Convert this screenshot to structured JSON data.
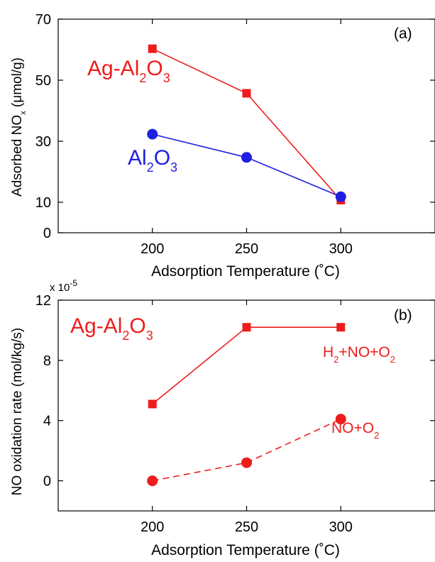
{
  "colors": {
    "red": "#ee1c1c",
    "blue": "#1f1fe0",
    "axis": "#000000"
  },
  "chart_data": [
    {
      "type": "line",
      "panel_label": "(a)",
      "xlabel": "Adsorption Temperature (˚C)",
      "ylabel": "Adsorbed NOₓ (μmol/g)",
      "xlim": [
        150,
        350
      ],
      "ylim": [
        0,
        70
      ],
      "xticks": [
        200,
        250,
        300
      ],
      "yticks": [
        0,
        10,
        30,
        50,
        70
      ],
      "grid": false,
      "series": [
        {
          "name": "Ag-Al₂O₃",
          "color": "#ee1c1c",
          "marker": "square",
          "line": "solid",
          "x": [
            200,
            250,
            300
          ],
          "y": [
            60.3,
            45.7,
            10.7
          ]
        },
        {
          "name": "Al₂O₃",
          "color": "#1f1fe0",
          "marker": "circle",
          "line": "solid",
          "x": [
            200,
            250,
            300
          ],
          "y": [
            32.3,
            24.7,
            11.8
          ]
        }
      ]
    },
    {
      "type": "line",
      "panel_label": "(b)",
      "title": "Ag-Al₂O₃",
      "xlabel": "Adsorption Temperature (˚C)",
      "ylabel": "NO oxidation rate (mol/kg/s)",
      "y_multiplier": "x 10",
      "y_exponent": "-5",
      "xlim": [
        150,
        350
      ],
      "ylim": [
        -2,
        12
      ],
      "xticks": [
        200,
        250,
        300
      ],
      "yticks": [
        0,
        4,
        8,
        12
      ],
      "grid": false,
      "series": [
        {
          "name": "H₂+NO+O₂",
          "color": "#ee1c1c",
          "marker": "square",
          "line": "solid",
          "x": [
            200,
            250,
            300
          ],
          "y": [
            5.1,
            10.2,
            10.2
          ]
        },
        {
          "name": "NO+O₂",
          "color": "#ee1c1c",
          "marker": "circle",
          "line": "dashed",
          "x": [
            200,
            250,
            300
          ],
          "y": [
            0.0,
            1.2,
            4.1
          ]
        }
      ]
    }
  ]
}
